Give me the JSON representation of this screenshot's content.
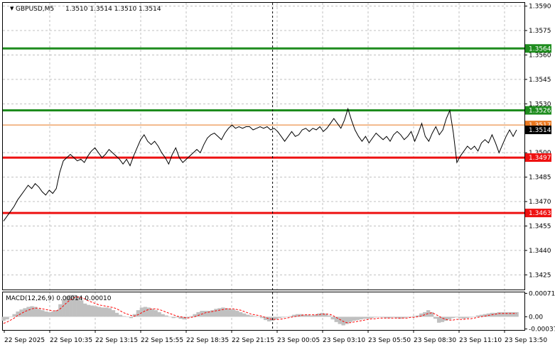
{
  "header": {
    "symbol": "GBPUSD,M5",
    "ohlc": "1.3510 1.3514 1.3510 1.3514",
    "macd_label": "MACD(12,26,9) 0.00014 0.00010"
  },
  "chart_data": [
    {
      "type": "line",
      "ylim": [
        1.3416,
        1.3592
      ],
      "y_ticks": [
        "1.3590",
        "1.3575",
        "1.3560",
        "1.3545",
        "1.3530",
        "1.3500",
        "1.3485",
        "1.3470",
        "1.3455",
        "1.3440",
        "1.3425"
      ],
      "x_ticks": [
        "22 Sep 2025",
        "22 Sep 10:35",
        "22 Sep 13:15",
        "22 Sep 15:55",
        "22 Sep 18:35",
        "22 Sep 21:15",
        "23 Sep 00:05",
        "23 Sep 03:10",
        "23 Sep 05:50",
        "23 Sep 08:30",
        "23 Sep 11:10",
        "23 Sep 13:50"
      ],
      "session_divider_after_tick": 5,
      "levels": [
        {
          "value": 1.3564,
          "label": "1.3564",
          "color": "#1e8c1e"
        },
        {
          "value": 1.3526,
          "label": "1.3526",
          "color": "#1e8c1e"
        },
        {
          "value": 1.3517,
          "label": "1.3517",
          "color": "#e8771f"
        },
        {
          "value": 1.3497,
          "label": "1.3497",
          "color": "#ee1111"
        },
        {
          "value": 1.3463,
          "label": "1.3463",
          "color": "#ee1111"
        }
      ],
      "current_price": {
        "value": 1.3514,
        "label": "1.3514"
      },
      "series": [
        {
          "values": [
            1.3458,
            1.3461,
            1.3464,
            1.3467,
            1.3471,
            1.3474,
            1.3477,
            1.348,
            1.3478,
            1.3481,
            1.3479,
            1.3476,
            1.3474,
            1.3477,
            1.3475,
            1.3478,
            1.3488,
            1.3495,
            1.3497,
            1.3499,
            1.3497,
            1.3495,
            1.3496,
            1.3494,
            1.3498,
            1.3501,
            1.3503,
            1.35,
            1.3497,
            1.3499,
            1.3502,
            1.35,
            1.3498,
            1.3496,
            1.3493,
            1.3496,
            1.3492,
            1.3498,
            1.3503,
            1.3508,
            1.3511,
            1.3507,
            1.3505,
            1.3507,
            1.3504,
            1.35,
            1.3497,
            1.3493,
            1.3499,
            1.3503,
            1.3497,
            1.3494,
            1.3496,
            1.3498,
            1.35,
            1.3502,
            1.35,
            1.3505,
            1.3509,
            1.3511,
            1.3512,
            1.351,
            1.3508,
            1.3512,
            1.3515,
            1.3517,
            1.3515,
            1.3516,
            1.3515,
            1.3516,
            1.3516,
            1.3514,
            1.3515,
            1.3516,
            1.3515,
            1.3516,
            1.3514,
            1.3515,
            1.3513,
            1.351,
            1.3507,
            1.351,
            1.3513,
            1.351,
            1.3511,
            1.3514,
            1.3515,
            1.3513,
            1.3515,
            1.3514,
            1.3516,
            1.3513,
            1.3515,
            1.3518,
            1.3521,
            1.3518,
            1.3515,
            1.352,
            1.3527,
            1.352,
            1.3514,
            1.351,
            1.3507,
            1.351,
            1.3506,
            1.3509,
            1.3512,
            1.351,
            1.3508,
            1.351,
            1.3507,
            1.3511,
            1.3513,
            1.3511,
            1.3508,
            1.351,
            1.3513,
            1.3507,
            1.3512,
            1.3518,
            1.351,
            1.3507,
            1.3512,
            1.3516,
            1.3511,
            1.3514,
            1.3521,
            1.3526,
            1.3512,
            1.3494,
            1.3498,
            1.3501,
            1.3504,
            1.3502,
            1.3504,
            1.3501,
            1.3506,
            1.3508,
            1.3506,
            1.3511,
            1.3506,
            1.35,
            1.3505,
            1.351,
            1.3514,
            1.351,
            1.3514
          ]
        }
      ]
    },
    {
      "type": "bar",
      "title": "MACD(12,26,9) 0.00014 0.00010",
      "ylim": [
        -0.0004,
        0.00074
      ],
      "y_ticks": [
        {
          "value": 0.00071,
          "label": "0.00071"
        },
        {
          "value": 0.0,
          "label": "0.00"
        },
        {
          "value": -0.00037,
          "label": "-0.00037"
        }
      ],
      "series": [
        {
          "kind": "histogram",
          "values": [
            -0.00012,
            -8e-05,
            0.0,
            8e-05,
            0.00016,
            0.00022,
            0.00026,
            0.0003,
            0.00032,
            0.0003,
            0.00024,
            0.0002,
            0.00016,
            0.00014,
            0.00016,
            0.0002,
            0.00038,
            0.00052,
            0.00062,
            0.00066,
            0.00066,
            0.00062,
            0.0005,
            0.0004,
            0.00036,
            0.00034,
            0.00032,
            0.0003,
            0.00028,
            0.00028,
            0.00026,
            0.0002,
            0.00012,
            6e-05,
            2e-05,
            0.0,
            -4e-05,
            8e-05,
            0.0002,
            0.00028,
            0.0003,
            0.00028,
            0.00024,
            0.0002,
            0.00014,
            8e-05,
            4e-05,
            0.0,
            -4e-05,
            -2e-05,
            -6e-05,
            -8e-05,
            -4e-05,
            2e-05,
            8e-05,
            0.00014,
            0.00018,
            0.00018,
            0.00018,
            0.0002,
            0.00024,
            0.00026,
            0.00028,
            0.00026,
            0.00024,
            0.00022,
            0.00018,
            0.00014,
            0.0001,
            6e-05,
            4e-05,
            2e-05,
            0.0,
            -4e-05,
            -0.0001,
            -0.00014,
            -0.00012,
            -8e-05,
            -4e-05,
            -2e-05,
            0.0,
            2e-05,
            6e-05,
            8e-05,
            8e-05,
            6e-05,
            6e-05,
            4e-05,
            6e-05,
            0.0001,
            0.00012,
            0.0001,
            4e-05,
            -8e-05,
            -0.00016,
            -0.00022,
            -0.00026,
            -0.00022,
            -0.00016,
            -0.00012,
            -0.0001,
            -8e-05,
            -6e-05,
            -6e-05,
            -4e-05,
            -2e-05,
            0.0,
            -2e-05,
            -4e-05,
            -4e-05,
            -2e-05,
            -4e-05,
            -6e-05,
            -4e-05,
            -2e-05,
            0.0,
            2e-05,
            4e-05,
            0.0001,
            0.00014,
            0.0002,
            0.00014,
            -6e-05,
            -0.00018,
            -0.00016,
            -0.00012,
            -8e-05,
            -4e-05,
            -2e-05,
            -4e-05,
            -6e-05,
            -4e-05,
            -2e-05,
            0.0,
            4e-05,
            6e-05,
            8e-05,
            0.0001,
            0.00012,
            0.00012,
            0.00014,
            0.00014,
            0.00014,
            0.00014,
            0.00014,
            0.00014
          ]
        },
        {
          "kind": "signal",
          "values": [
            -0.0002,
            -0.00016,
            -0.0001,
            -4e-05,
            4e-05,
            0.0001,
            0.00016,
            0.0002,
            0.00024,
            0.00026,
            0.00026,
            0.00024,
            0.00022,
            0.0002,
            0.00018,
            0.00018,
            0.00024,
            0.00034,
            0.00044,
            0.00052,
            0.00058,
            0.0006,
            0.00058,
            0.00054,
            0.00048,
            0.00044,
            0.0004,
            0.00036,
            0.00034,
            0.00032,
            0.0003,
            0.00028,
            0.00024,
            0.00018,
            0.00012,
            8e-05,
            4e-05,
            2e-05,
            6e-05,
            0.00012,
            0.00018,
            0.00022,
            0.00024,
            0.00024,
            0.00022,
            0.00018,
            0.00014,
            0.0001,
            6e-05,
            2e-05,
            0.0,
            -2e-05,
            -4e-05,
            -2e-05,
            0.0,
            4e-05,
            8e-05,
            0.00012,
            0.00014,
            0.00016,
            0.00018,
            0.0002,
            0.00022,
            0.00024,
            0.00024,
            0.00024,
            0.00022,
            0.0002,
            0.00016,
            0.00012,
            8e-05,
            6e-05,
            4e-05,
            2e-05,
            -2e-05,
            -6e-05,
            -8e-05,
            -8e-05,
            -8e-05,
            -6e-05,
            -4e-05,
            -2e-05,
            0.0,
            2e-05,
            4e-05,
            6e-05,
            6e-05,
            6e-05,
            6e-05,
            6e-05,
            8e-05,
            8e-05,
            8e-05,
            4e-05,
            -2e-05,
            -8e-05,
            -0.00014,
            -0.00018,
            -0.00018,
            -0.00016,
            -0.00014,
            -0.00012,
            -0.0001,
            -8e-05,
            -6e-05,
            -6e-05,
            -4e-05,
            -4e-05,
            -4e-05,
            -4e-05,
            -4e-05,
            -4e-05,
            -4e-05,
            -4e-05,
            -4e-05,
            -2e-05,
            -2e-05,
            0.0,
            2e-05,
            6e-05,
            0.0001,
            0.00012,
            8e-05,
            2e-05,
            -4e-05,
            -8e-05,
            -0.0001,
            -0.0001,
            -8e-05,
            -8e-05,
            -8e-05,
            -6e-05,
            -6e-05,
            -4e-05,
            -2e-05,
            0.0,
            2e-05,
            4e-05,
            6e-05,
            8e-05,
            0.0001,
            0.0001,
            0.0001,
            0.0001,
            0.0001,
            0.0001
          ]
        }
      ]
    }
  ],
  "colors": {
    "price_line": "#000000",
    "grid": "#c0c0c0",
    "histogram": "#c0c0c0",
    "signal": "#ff0000",
    "divider": "#000000"
  }
}
